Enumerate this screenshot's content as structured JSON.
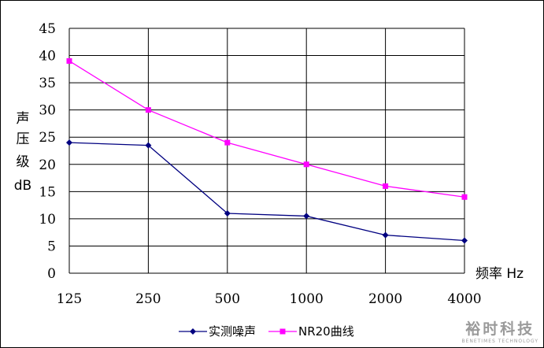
{
  "chart_data": {
    "type": "line",
    "categories": [
      "125",
      "250",
      "500",
      "1000",
      "2000",
      "4000"
    ],
    "series": [
      {
        "name": "实测噪声",
        "values": [
          24,
          23.5,
          11,
          10.5,
          7,
          6
        ],
        "color": "#000080",
        "marker": "diamond"
      },
      {
        "name": "NR20曲线",
        "values": [
          39,
          30,
          24,
          20,
          16,
          14
        ],
        "color": "#ff00ff",
        "marker": "square"
      }
    ],
    "ylabel_lines": [
      "声",
      "压",
      "级",
      "dB"
    ],
    "xlabel": "频率 Hz",
    "ylim": [
      0,
      45
    ],
    "yticks": [
      0,
      5,
      10,
      15,
      20,
      25,
      30,
      35,
      40,
      45
    ],
    "grid": true,
    "legend": "bottom-center"
  },
  "watermark": {
    "main": "裕时科技",
    "sub": "BENETIMES TECHNOLOGY"
  }
}
